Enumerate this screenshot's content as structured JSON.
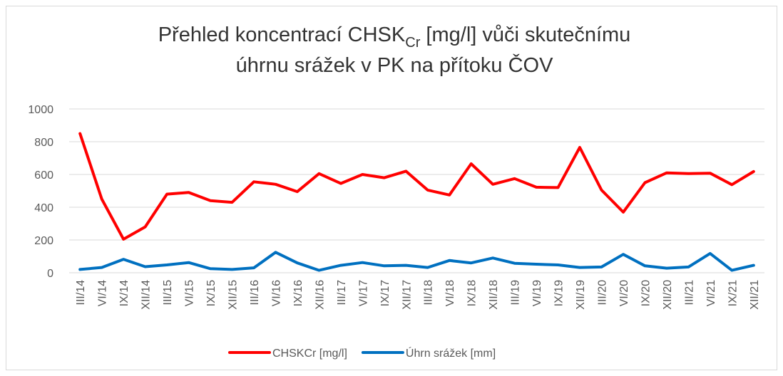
{
  "chart_data": {
    "type": "line",
    "title": {
      "line1_start": "Přehled koncentrací CHSK",
      "line1_sub": "Cr",
      "line1_end": " [mg/l] vůči skutečnímu",
      "line2": "úhrnu srážek v PK na přítoku ČOV"
    },
    "categories": [
      "III/14",
      "VI/14",
      "IX/14",
      "XII/14",
      "III/15",
      "VI/15",
      "IX/15",
      "XII/15",
      "III/16",
      "VI/16",
      "IX/16",
      "XII/16",
      "III/17",
      "VI/17",
      "IX/17",
      "XII/17",
      "III/18",
      "VI/18",
      "IX/18",
      "XII/18",
      "III/19",
      "VI/19",
      "IX/19",
      "XII/19",
      "III/20",
      "VI/20",
      "IX/20",
      "XII/20",
      "III/21",
      "VI/21",
      "IX/21",
      "XII/21"
    ],
    "series": [
      {
        "name": "CHSKCr [mg/l]",
        "color": "#ff0000",
        "values": [
          850,
          450,
          205,
          280,
          480,
          490,
          440,
          430,
          555,
          540,
          495,
          605,
          545,
          600,
          580,
          620,
          505,
          475,
          665,
          540,
          575,
          522,
          520,
          765,
          505,
          370,
          550,
          610,
          605,
          608,
          538,
          618
        ]
      },
      {
        "name": "Úhrn srážek [mm]",
        "color": "#0070c0",
        "values": [
          20,
          32,
          82,
          37,
          48,
          62,
          25,
          20,
          30,
          125,
          60,
          15,
          45,
          62,
          42,
          45,
          32,
          75,
          60,
          90,
          58,
          52,
          48,
          32,
          35,
          112,
          42,
          28,
          35,
          118,
          15,
          45
        ]
      }
    ],
    "ylim": [
      0,
      1000
    ],
    "yticks": [
      0,
      200,
      400,
      600,
      800,
      1000
    ],
    "grid": true,
    "legend": "bottom"
  }
}
